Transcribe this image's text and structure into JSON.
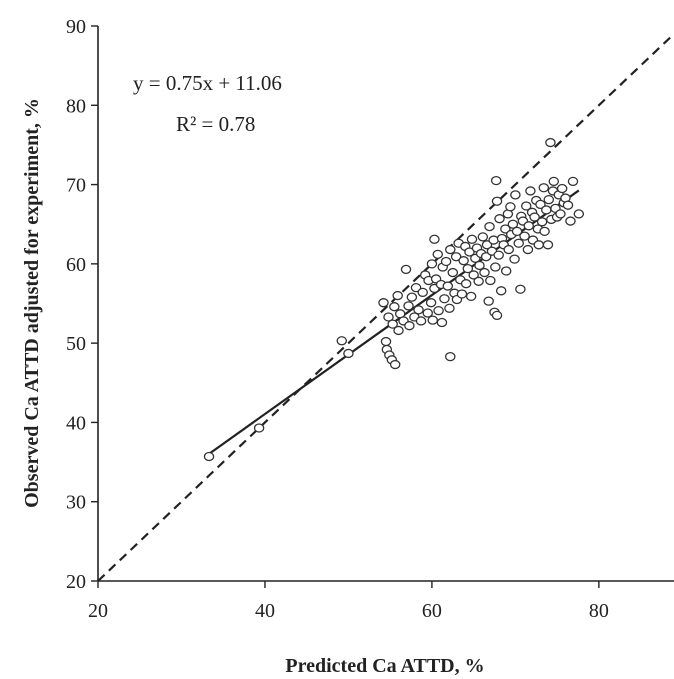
{
  "chart_data": {
    "type": "scatter",
    "xlabel": "Predicted Ca ATTD, %",
    "ylabel": "Observed Ca ATTD adjusted for experiment, %",
    "xlim": [
      20,
      89
    ],
    "ylim": [
      20,
      90
    ],
    "x_ticks": [
      "20",
      "40",
      "60",
      "80"
    ],
    "y_ticks": [
      "20",
      "30",
      "40",
      "50",
      "60",
      "70",
      "80",
      "90"
    ],
    "annotations": {
      "equation": "y = 0.75x + 11.06",
      "r_squared": "R² = 0.78"
    },
    "regression_line": {
      "slope": 0.75,
      "intercept": 11.06,
      "x_range": [
        33.2,
        77.6
      ],
      "style": "solid"
    },
    "identity_line": {
      "slope": 1,
      "intercept": 0,
      "style": "dashed"
    },
    "marker": "open-circle",
    "points": [
      [
        33.3,
        35.7
      ],
      [
        39.3,
        39.3
      ],
      [
        49.2,
        50.3
      ],
      [
        50.0,
        48.7
      ],
      [
        54.2,
        55.1
      ],
      [
        54.5,
        50.2
      ],
      [
        54.6,
        49.2
      ],
      [
        54.9,
        48.5
      ],
      [
        55.2,
        47.9
      ],
      [
        55.6,
        47.3
      ],
      [
        54.8,
        53.3
      ],
      [
        55.3,
        52.4
      ],
      [
        55.5,
        54.6
      ],
      [
        55.9,
        56.0
      ],
      [
        56.0,
        51.6
      ],
      [
        56.2,
        53.7
      ],
      [
        56.6,
        52.8
      ],
      [
        56.9,
        59.3
      ],
      [
        57.2,
        54.7
      ],
      [
        57.3,
        52.2
      ],
      [
        57.6,
        55.8
      ],
      [
        57.9,
        53.3
      ],
      [
        58.1,
        57.0
      ],
      [
        58.4,
        54.2
      ],
      [
        58.7,
        52.8
      ],
      [
        58.9,
        56.4
      ],
      [
        59.2,
        58.6
      ],
      [
        59.5,
        53.8
      ],
      [
        59.6,
        57.9
      ],
      [
        59.9,
        55.1
      ],
      [
        60.0,
        60.0
      ],
      [
        60.1,
        52.9
      ],
      [
        60.3,
        56.9
      ],
      [
        60.3,
        63.1
      ],
      [
        60.5,
        58.1
      ],
      [
        60.7,
        61.2
      ],
      [
        60.8,
        54.1
      ],
      [
        61.1,
        57.4
      ],
      [
        61.2,
        52.6
      ],
      [
        61.3,
        59.6
      ],
      [
        61.5,
        55.6
      ],
      [
        61.7,
        60.3
      ],
      [
        61.9,
        57.2
      ],
      [
        62.1,
        54.4
      ],
      [
        62.2,
        61.8
      ],
      [
        62.2,
        48.3
      ],
      [
        62.5,
        58.9
      ],
      [
        62.7,
        56.3
      ],
      [
        62.9,
        60.9
      ],
      [
        63.0,
        55.5
      ],
      [
        63.2,
        62.6
      ],
      [
        63.4,
        58.0
      ],
      [
        63.6,
        56.2
      ],
      [
        63.8,
        60.4
      ],
      [
        64.0,
        62.2
      ],
      [
        64.1,
        57.5
      ],
      [
        64.3,
        59.4
      ],
      [
        64.5,
        61.5
      ],
      [
        64.7,
        55.9
      ],
      [
        64.8,
        63.1
      ],
      [
        65.0,
        58.6
      ],
      [
        65.2,
        60.7
      ],
      [
        65.4,
        62.0
      ],
      [
        65.6,
        57.8
      ],
      [
        65.7,
        59.8
      ],
      [
        65.9,
        61.3
      ],
      [
        66.1,
        63.4
      ],
      [
        66.3,
        58.9
      ],
      [
        66.5,
        60.9
      ],
      [
        66.6,
        62.4
      ],
      [
        66.8,
        55.3
      ],
      [
        66.9,
        64.7
      ],
      [
        67.0,
        57.9
      ],
      [
        67.2,
        61.6
      ],
      [
        67.4,
        63.0
      ],
      [
        67.5,
        53.9
      ],
      [
        67.6,
        59.6
      ],
      [
        67.7,
        70.5
      ],
      [
        67.8,
        53.5
      ],
      [
        67.8,
        67.9
      ],
      [
        68.0,
        61.1
      ],
      [
        68.1,
        65.7
      ],
      [
        68.3,
        56.6
      ],
      [
        68.4,
        63.2
      ],
      [
        68.6,
        62.4
      ],
      [
        68.8,
        64.4
      ],
      [
        68.9,
        59.1
      ],
      [
        69.1,
        66.3
      ],
      [
        69.2,
        61.8
      ],
      [
        69.4,
        67.2
      ],
      [
        69.5,
        63.7
      ],
      [
        69.7,
        65.0
      ],
      [
        69.9,
        60.6
      ],
      [
        70.0,
        68.7
      ],
      [
        70.2,
        64.1
      ],
      [
        70.4,
        62.6
      ],
      [
        70.6,
        56.8
      ],
      [
        70.7,
        66.0
      ],
      [
        70.9,
        65.4
      ],
      [
        71.1,
        63.5
      ],
      [
        71.3,
        67.3
      ],
      [
        71.5,
        61.8
      ],
      [
        71.6,
        64.8
      ],
      [
        71.8,
        69.2
      ],
      [
        72.0,
        66.5
      ],
      [
        72.1,
        63.0
      ],
      [
        72.3,
        65.9
      ],
      [
        72.5,
        68.0
      ],
      [
        72.7,
        64.4
      ],
      [
        72.8,
        62.4
      ],
      [
        73.0,
        67.5
      ],
      [
        73.2,
        65.3
      ],
      [
        73.4,
        69.6
      ],
      [
        73.5,
        64.1
      ],
      [
        73.7,
        66.8
      ],
      [
        73.9,
        62.4
      ],
      [
        74.0,
        68.1
      ],
      [
        74.2,
        75.3
      ],
      [
        74.3,
        65.6
      ],
      [
        74.5,
        69.2
      ],
      [
        74.6,
        70.4
      ],
      [
        74.8,
        67.0
      ],
      [
        75.0,
        65.9
      ],
      [
        75.2,
        68.7
      ],
      [
        75.4,
        66.3
      ],
      [
        75.6,
        69.5
      ],
      [
        75.8,
        67.7
      ],
      [
        76.0,
        68.3
      ],
      [
        76.3,
        67.4
      ],
      [
        76.6,
        65.4
      ],
      [
        76.9,
        70.4
      ],
      [
        77.6,
        66.3
      ]
    ]
  }
}
